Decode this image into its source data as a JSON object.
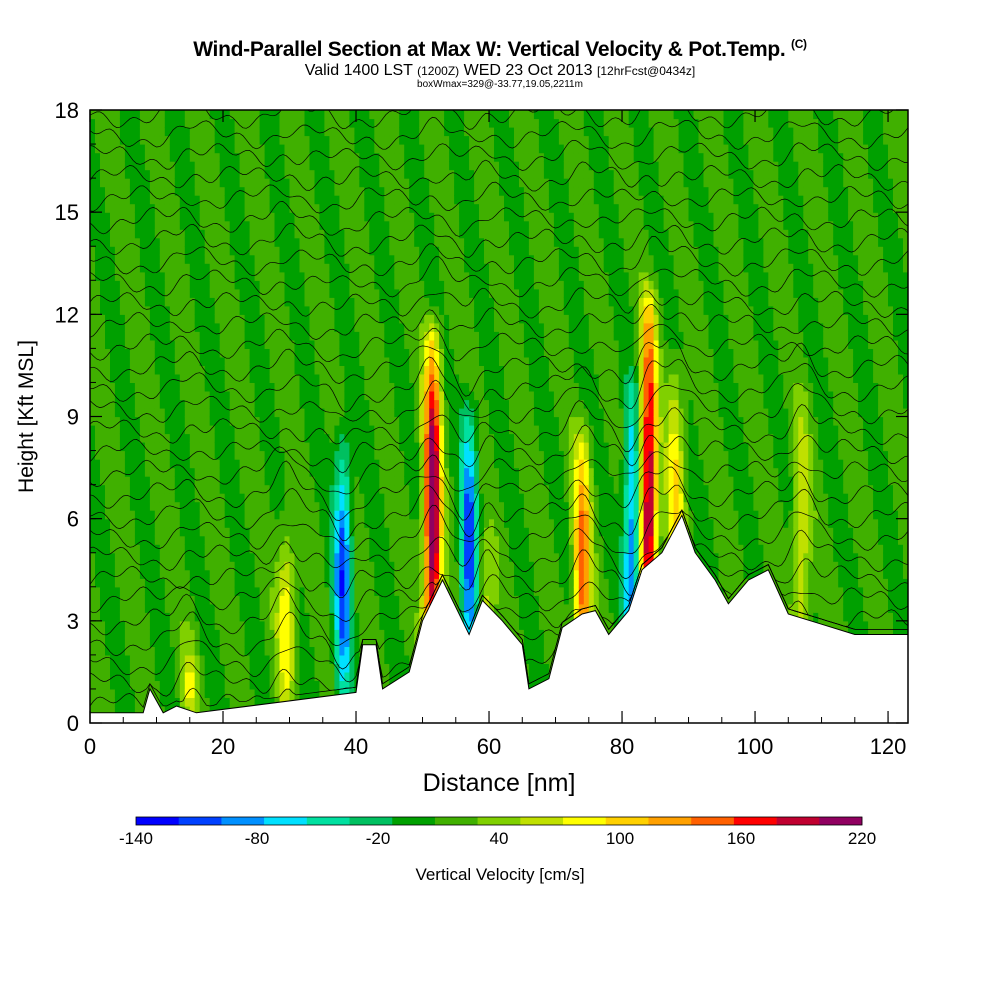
{
  "title": "Wind-Parallel Section at Max W: Vertical Velocity & Pot.Temp.",
  "title_mark": "(C)",
  "subtitle_a": "Valid 1400 LST",
  "subtitle_b": "(1200Z)",
  "subtitle_c": "WED 23 Oct 2013",
  "subtitle_d": "[12hrFcst@0434z]",
  "subtitle2": "boxWmax=329@-33.77,19.05,2211m",
  "chart_data": {
    "type": "heatmap",
    "xlabel": "Distance [nm]",
    "ylabel": "Height [Kft MSL]",
    "xlim": [
      0,
      123
    ],
    "ylim": [
      0,
      18
    ],
    "x_ticks": [
      0,
      20,
      40,
      60,
      80,
      100,
      120
    ],
    "y_ticks": [
      0,
      3,
      6,
      9,
      12,
      15,
      18
    ],
    "colorbar": {
      "label": "Vertical Velocity [cm/s]",
      "min": -140,
      "max": 220,
      "tick_labels": [
        -140,
        -80,
        -20,
        40,
        100,
        160,
        220
      ],
      "colors": [
        "#0000ff",
        "#0040ff",
        "#0090ff",
        "#00e0ff",
        "#00e0a0",
        "#00c060",
        "#00a000",
        "#40b000",
        "#80d000",
        "#c0e000",
        "#ffff00",
        "#ffd000",
        "#ffa000",
        "#ff6000",
        "#ff0000",
        "#c00030",
        "#900060"
      ]
    },
    "background_w_cm_s": 0,
    "updrafts": [
      {
        "x": 15,
        "z_top": 2.0,
        "w_max": 60
      },
      {
        "x": 29.5,
        "z_top": 5.5,
        "w_max": 80
      },
      {
        "x": 51.5,
        "z_top": 11.0,
        "w_max": 220
      },
      {
        "x": 59.5,
        "z_top": 5.0,
        "w_max": 60
      },
      {
        "x": 74,
        "z_top": 8.0,
        "w_max": 140
      },
      {
        "x": 84,
        "z_top": 12.0,
        "w_max": 200
      },
      {
        "x": 88,
        "z_top": 10.0,
        "w_max": 90
      },
      {
        "x": 107,
        "z_top": 9.0,
        "w_max": 60
      }
    ],
    "downdrafts": [
      {
        "x": 38,
        "z_top": 8.0,
        "w_min": -120
      },
      {
        "x": 57,
        "z_top": 9.0,
        "w_min": -120
      },
      {
        "x": 81.5,
        "z_top": 9.5,
        "w_min": -110
      }
    ],
    "terrain_profile_kft": [
      [
        0,
        0.3
      ],
      [
        8,
        0.3
      ],
      [
        9,
        1.0
      ],
      [
        11,
        0.3
      ],
      [
        13,
        0.5
      ],
      [
        16,
        0.3
      ],
      [
        40,
        0.9
      ],
      [
        41,
        2.3
      ],
      [
        43,
        2.3
      ],
      [
        44,
        1.0
      ],
      [
        48,
        1.5
      ],
      [
        50,
        3.0
      ],
      [
        53,
        4.2
      ],
      [
        55,
        3.4
      ],
      [
        57,
        2.6
      ],
      [
        59,
        3.6
      ],
      [
        62,
        3.0
      ],
      [
        65,
        2.3
      ],
      [
        66,
        1.0
      ],
      [
        69,
        1.3
      ],
      [
        71,
        2.8
      ],
      [
        74,
        3.2
      ],
      [
        76,
        3.3
      ],
      [
        78,
        2.6
      ],
      [
        81,
        3.3
      ],
      [
        83,
        4.5
      ],
      [
        86,
        5.0
      ],
      [
        89,
        6.1
      ],
      [
        91,
        5.0
      ],
      [
        94,
        4.2
      ],
      [
        96,
        3.5
      ],
      [
        99,
        4.2
      ],
      [
        102,
        4.5
      ],
      [
        105,
        3.2
      ],
      [
        110,
        2.9
      ],
      [
        115,
        2.6
      ],
      [
        123,
        2.6
      ]
    ],
    "theta_contours": 30
  }
}
